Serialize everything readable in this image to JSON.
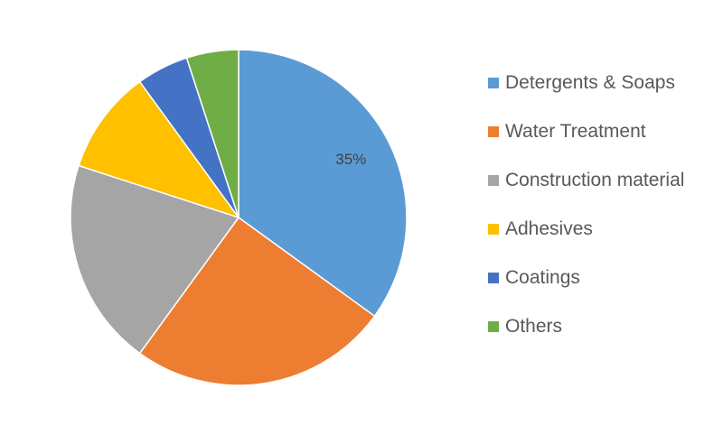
{
  "chart_data": {
    "type": "pie",
    "title": "",
    "categories": [
      "Detergents & Soaps",
      "Water Treatment",
      "Construction material",
      "Adhesives",
      "Coatings",
      "Others"
    ],
    "values": [
      35,
      25,
      20,
      10,
      5,
      5
    ],
    "data_labels": [
      "35%",
      "",
      "",
      "",
      "",
      ""
    ],
    "colors": [
      "#5B9BD5",
      "#ED7D31",
      "#A5A5A5",
      "#FFC000",
      "#4472C4",
      "#70AD47"
    ],
    "legend_position": "right"
  }
}
